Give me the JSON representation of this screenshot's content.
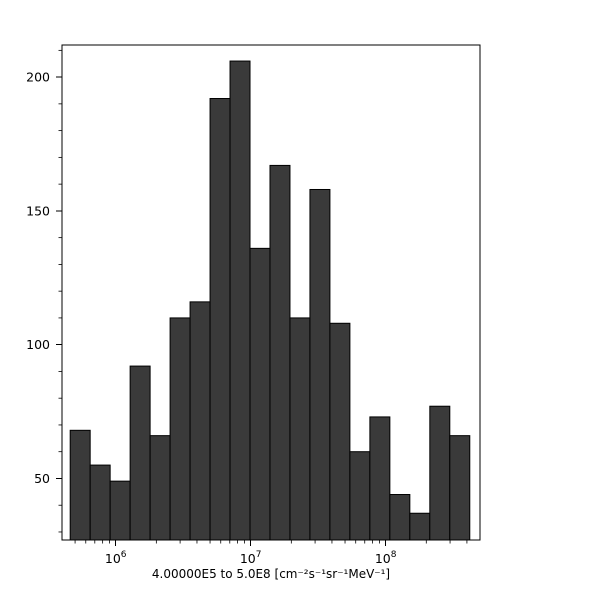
{
  "chart_data": {
    "type": "bar",
    "subtype": "histogram",
    "title": "",
    "xlabel": "4.00000E5 to 5.0E8 [cm⁻²s⁻¹sr⁻¹MeV⁻¹]",
    "ylabel": "",
    "x_scale": "log",
    "y_scale": "linear",
    "xlim": [
      400000,
      500000000
    ],
    "ylim": [
      27,
      212
    ],
    "grid": false,
    "legend": false,
    "bins": {
      "scale": "log",
      "min": 460000,
      "max": 420000000,
      "count": 20
    },
    "values": [
      68,
      55,
      49,
      92,
      66,
      110,
      116,
      192,
      206,
      136,
      167,
      110,
      158,
      108,
      60,
      73,
      44,
      37,
      77,
      66
    ],
    "x_ticks": [
      {
        "value": 1000000,
        "base": "10",
        "exp": "6",
        "label": "10⁶"
      },
      {
        "value": 10000000,
        "base": "10",
        "exp": "7",
        "label": "10⁷"
      },
      {
        "value": 100000000,
        "base": "10",
        "exp": "8",
        "label": "10⁸"
      }
    ],
    "y_ticks": [
      {
        "value": 50,
        "label": "50"
      },
      {
        "value": 100,
        "label": "100"
      },
      {
        "value": 150,
        "label": "150"
      },
      {
        "value": 200,
        "label": "200"
      }
    ],
    "y_minor_step": 10,
    "style": {
      "bar_fill": "#3a3a3a",
      "bar_edge": "#000000",
      "axis_color": "#000000",
      "background": "#ffffff"
    }
  }
}
